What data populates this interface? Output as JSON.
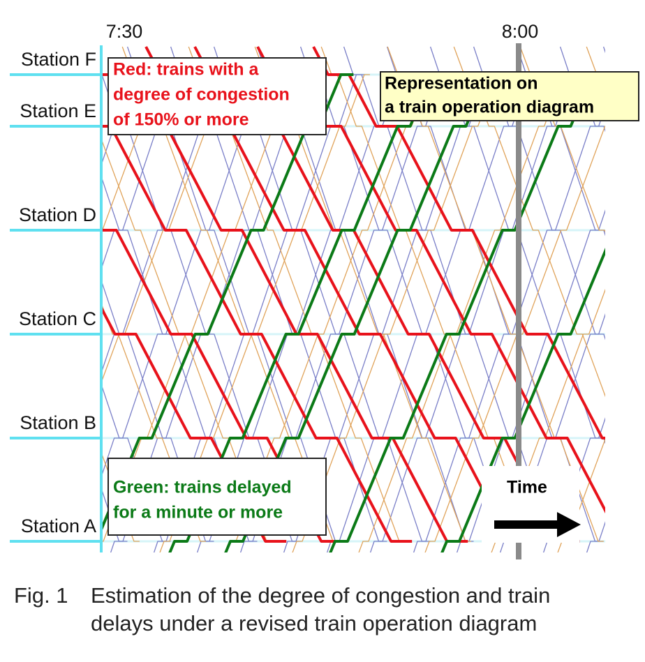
{
  "header": {
    "time_labels": [
      "7:30",
      "8:00"
    ]
  },
  "stations": [
    "Station F",
    "Station E",
    "Station D",
    "Station C",
    "Station B",
    "Station A"
  ],
  "legend": {
    "red": [
      "Red: trains with a",
      "degree of congestion",
      "of 150% or more"
    ],
    "green": [
      "Green: trains delayed",
      "for a minute or more"
    ]
  },
  "callout": [
    "Representation on",
    "a train operation diagram"
  ],
  "time_arrow": "Time",
  "caption": {
    "figure": "Fig. 1",
    "lines": [
      "Estimation of the degree of congestion and train",
      "delays under a revised train operation diagram"
    ]
  }
}
